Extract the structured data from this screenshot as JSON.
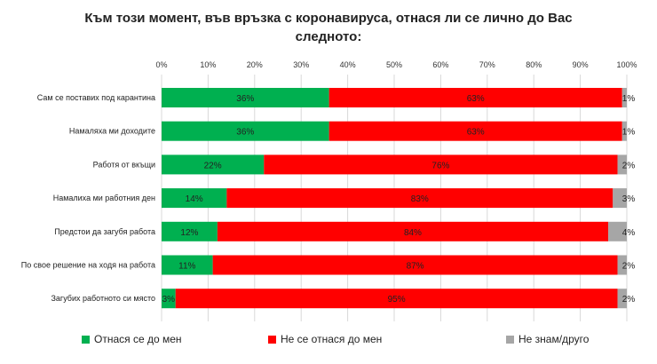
{
  "title_line1": "Към този момент, във връзка с коронавируса, отнася ли се лично до Вас",
  "title_line2": "следното:",
  "chart_data": {
    "type": "bar",
    "orientation": "horizontal",
    "stacked": true,
    "categories": [
      "Сам се поставих под карантина",
      "Намаляха ми доходите",
      "Работя от вкъщи",
      "Намалиха ми работния ден",
      "Предстои да загубя работа",
      "По свое решение на ходя на работа",
      "Загубих работното си място"
    ],
    "series": [
      {
        "name": "Отнася се до мен",
        "color": "#00b050",
        "values": [
          36,
          36,
          22,
          14,
          12,
          11,
          3
        ]
      },
      {
        "name": "Не се отнася до мен",
        "color": "#ff0000",
        "values": [
          63,
          63,
          76,
          83,
          84,
          87,
          95
        ]
      },
      {
        "name": "Не знам/друго",
        "color": "#a6a6a6",
        "values": [
          1,
          1,
          2,
          3,
          4,
          2,
          2
        ]
      }
    ],
    "xlim": [
      0,
      100
    ],
    "x_ticks": [
      "0%",
      "10%",
      "20%",
      "30%",
      "40%",
      "50%",
      "60%",
      "70%",
      "80%",
      "90%",
      "100%"
    ],
    "value_suffix": "%",
    "axis_position": "top",
    "grid": true,
    "legend_position": "bottom"
  }
}
